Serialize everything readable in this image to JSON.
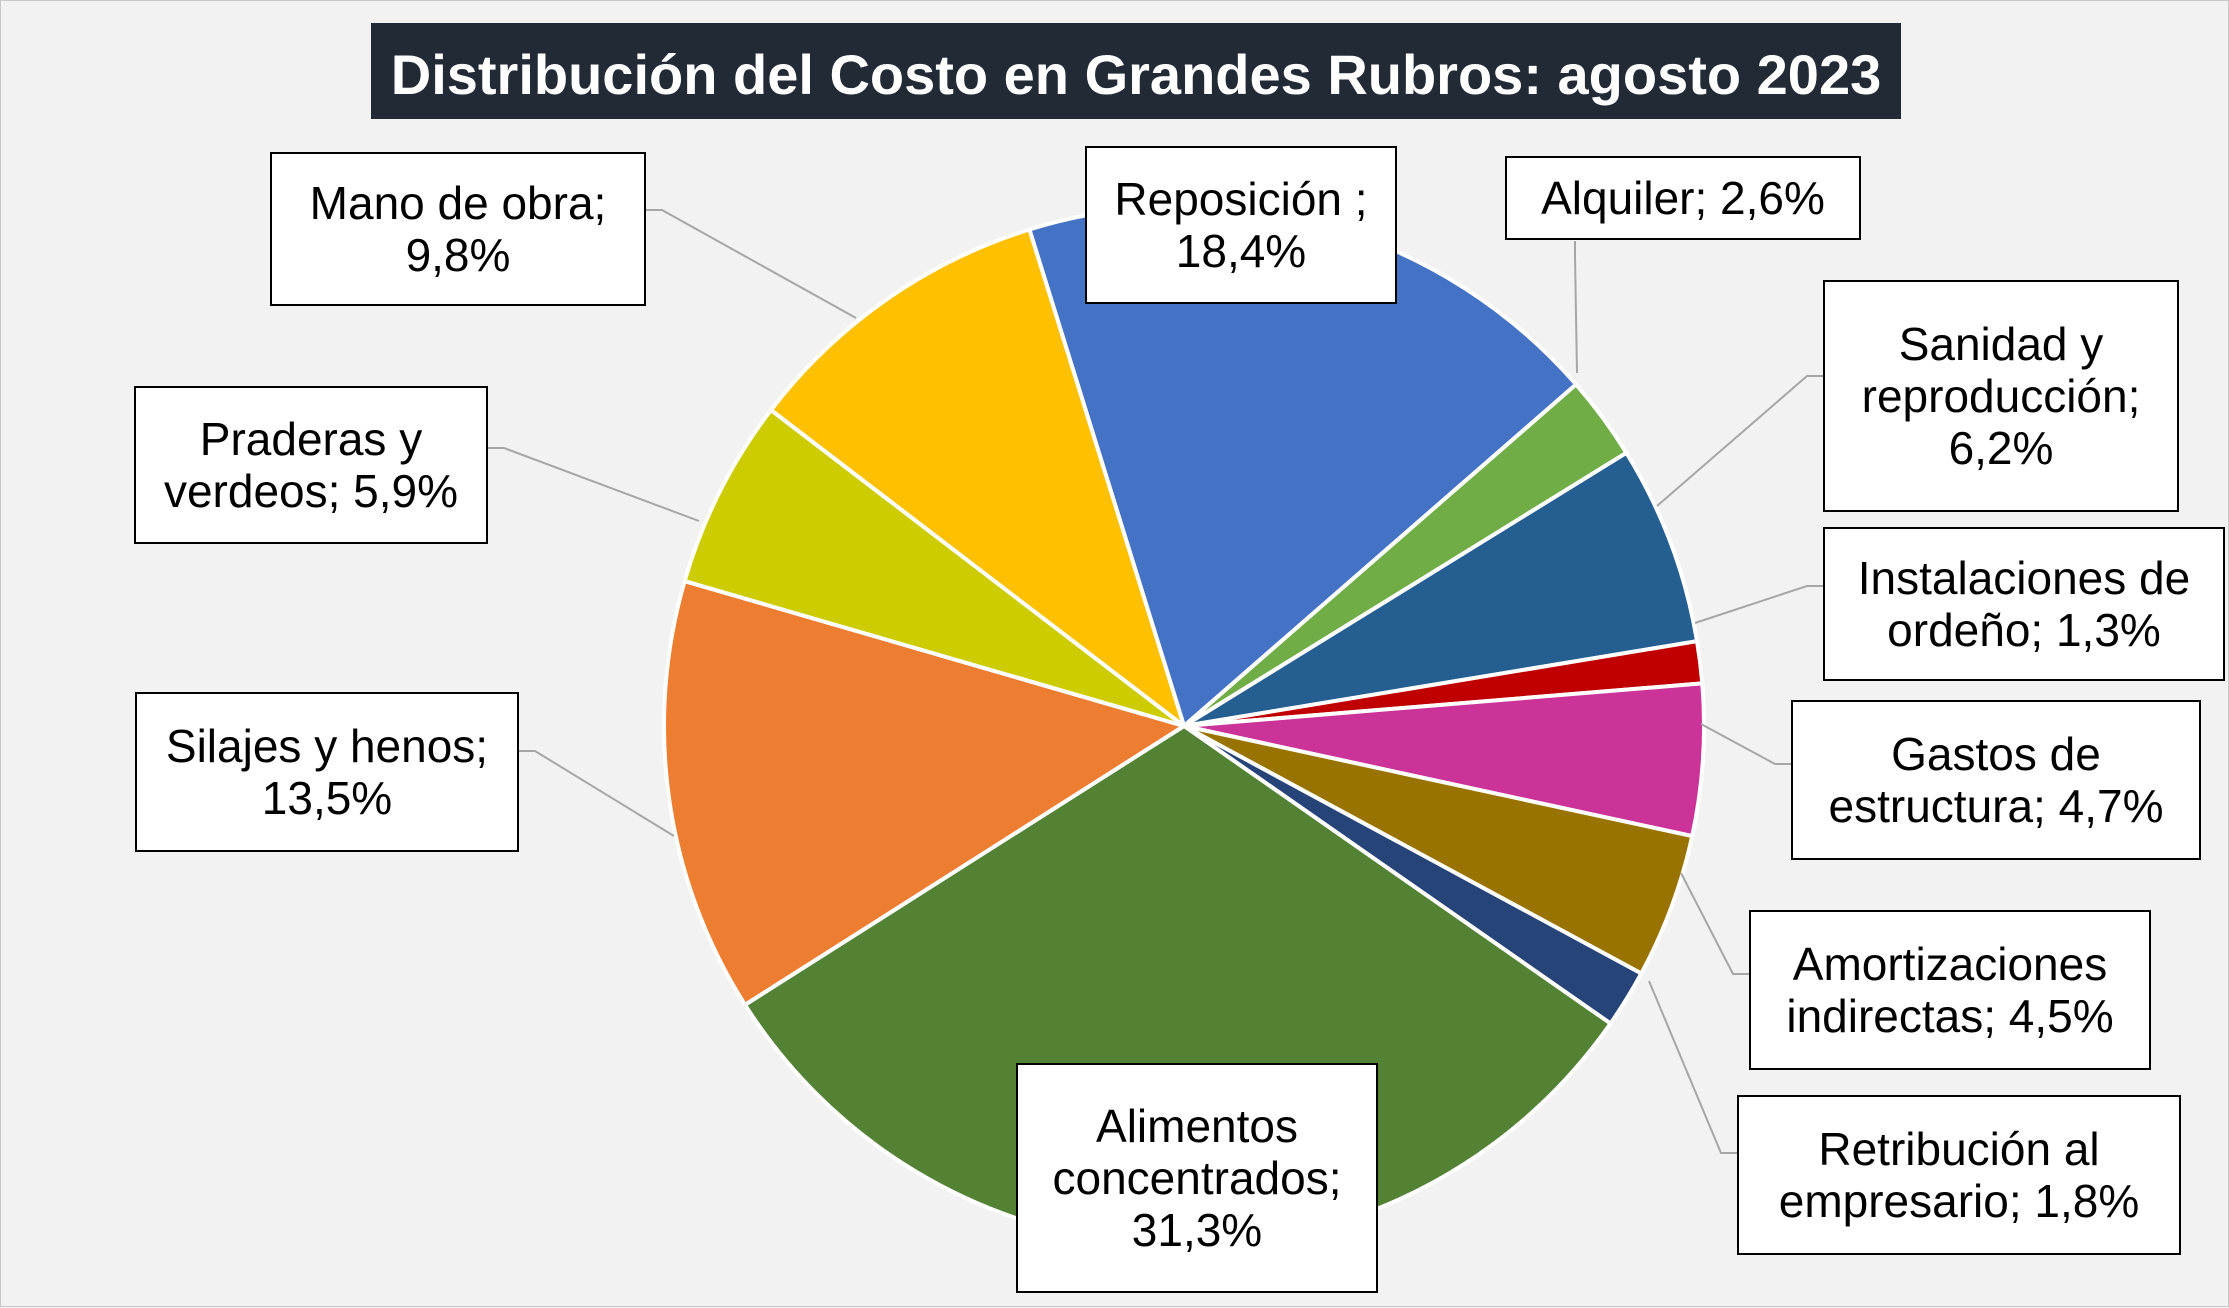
{
  "chart_data": {
    "type": "pie",
    "title": "Distribución del Costo en Grandes Rubros: agosto 2023",
    "start_angle_deg": -17.3,
    "direction": "clockwise",
    "slices": [
      {
        "name": "Reposición ;",
        "value": 18.4,
        "label": "18,4%",
        "color": "#4472c4"
      },
      {
        "name": "Alquiler;",
        "value": 2.6,
        "label": "2,6%",
        "color": "#70ad47"
      },
      {
        "name": "Sanidad y reproducción;",
        "value": 6.2,
        "label": "6,2%",
        "color": "#255e91"
      },
      {
        "name": "Instalaciones de ordeño;",
        "value": 1.3,
        "label": "1,3%",
        "color": "#c00000"
      },
      {
        "name": "Gastos de estructura;",
        "value": 4.7,
        "label": "4,7%",
        "color": "#cc3399"
      },
      {
        "name": "Amortizaciones indirectas;",
        "value": 4.5,
        "label": "4,5%",
        "color": "#997300"
      },
      {
        "name": "Retribución al empresario;",
        "value": 1.8,
        "label": "1,8%",
        "color": "#264478"
      },
      {
        "name": "Alimentos concentrados;",
        "value": 31.3,
        "label": "31,3%",
        "color": "#548235"
      },
      {
        "name": "Silajes y henos;",
        "value": 13.5,
        "label": "13,5%",
        "color": "#ed7d31"
      },
      {
        "name": "Praderas y verdeos;",
        "value": 5.9,
        "label": "5,9%",
        "color": "#cccc00"
      },
      {
        "name": "Mano de obra;",
        "value": 9.8,
        "label": "9,8%",
        "color": "#ffc000"
      }
    ],
    "data_labels": [
      {
        "lines": [
          "Reposición ;",
          "18,4%"
        ]
      },
      {
        "lines": [
          "Alquiler; 2,6%"
        ]
      },
      {
        "lines": [
          "Sanidad y",
          "reproducción;",
          "6,2%"
        ]
      },
      {
        "lines": [
          "Instalaciones de",
          "ordeño; 1,3%"
        ]
      },
      {
        "lines": [
          "Gastos de",
          "estructura; 4,7%"
        ]
      },
      {
        "lines": [
          "Amortizaciones",
          "indirectas; 4,5%"
        ]
      },
      {
        "lines": [
          "Retribución al",
          "empresario; 1,8%"
        ]
      },
      {
        "lines": [
          "Alimentos",
          "concentrados;",
          "31,3%"
        ]
      },
      {
        "lines": [
          "Silajes y henos;",
          "13,5%"
        ]
      },
      {
        "lines": [
          "Praderas y",
          "verdeos; 5,9%"
        ]
      },
      {
        "lines": [
          "Mano de obra;",
          "9,8%"
        ]
      }
    ],
    "colors": {
      "background": "#f2f2f2",
      "title_bg": "#222a35",
      "title_fg": "#ffffff",
      "leader_line": "#a6a6a6",
      "label_border": "#000000"
    }
  }
}
